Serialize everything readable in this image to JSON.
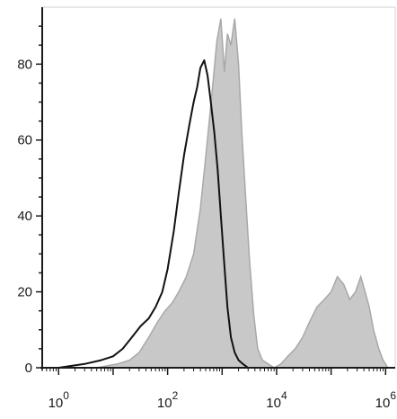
{
  "chart_data": {
    "type": "area",
    "title": "",
    "xlabel": "",
    "ylabel": "",
    "x_scale": "log",
    "xlim": [
      0.5,
      1500000
    ],
    "ylim": [
      0,
      95
    ],
    "grid": false,
    "legend": "none",
    "x_ticks": [
      {
        "base": "10",
        "exp": "0",
        "value": 1
      },
      {
        "base": "10",
        "exp": "2",
        "value": 100
      },
      {
        "base": "10",
        "exp": "4",
        "value": 10000
      },
      {
        "base": "10",
        "exp": "6",
        "value": 1000000
      }
    ],
    "y_ticks": [
      {
        "label": "0",
        "value": 0
      },
      {
        "label": "20",
        "value": 20
      },
      {
        "label": "40",
        "value": 40
      },
      {
        "label": "60",
        "value": 60
      },
      {
        "label": "80",
        "value": 80
      }
    ],
    "series": [
      {
        "style": "filled",
        "color": "#c8c8c8",
        "stroke": "#a8a8a8",
        "x": [
          1,
          5,
          12,
          20,
          30,
          45,
          65,
          90,
          120,
          160,
          220,
          300,
          400,
          520,
          650,
          800,
          950,
          1100,
          1250,
          1450,
          1700,
          2000,
          2300,
          2700,
          3200,
          3800,
          4500,
          5500,
          7000,
          9000,
          12000,
          16000,
          22000,
          30000,
          40000,
          55000,
          75000,
          100000,
          130000,
          170000,
          220000,
          280000,
          350000,
          420000,
          500000,
          600000,
          750000,
          900000,
          1100000
        ],
        "y": [
          0,
          0,
          1,
          2,
          4,
          8,
          12,
          15,
          17,
          20,
          24,
          30,
          42,
          58,
          72,
          86,
          92,
          78,
          88,
          85,
          92,
          80,
          62,
          45,
          28,
          14,
          5,
          2,
          1,
          0,
          1,
          3,
          5,
          8,
          12,
          16,
          18,
          20,
          24,
          22,
          18,
          20,
          24,
          20,
          16,
          10,
          5,
          2,
          0
        ]
      },
      {
        "style": "line",
        "color": "#111111",
        "x": [
          1,
          3,
          6,
          10,
          15,
          22,
          32,
          45,
          60,
          80,
          100,
          130,
          160,
          200,
          250,
          300,
          350,
          400,
          470,
          540,
          620,
          720,
          830,
          950,
          1100,
          1250,
          1450,
          1700,
          2000,
          2400,
          3000
        ],
        "y": [
          0,
          1,
          2,
          3,
          5,
          8,
          11,
          13,
          16,
          20,
          26,
          36,
          46,
          56,
          64,
          70,
          74,
          79,
          81,
          77,
          70,
          62,
          52,
          40,
          27,
          16,
          8,
          4,
          2,
          1,
          0
        ]
      }
    ]
  }
}
